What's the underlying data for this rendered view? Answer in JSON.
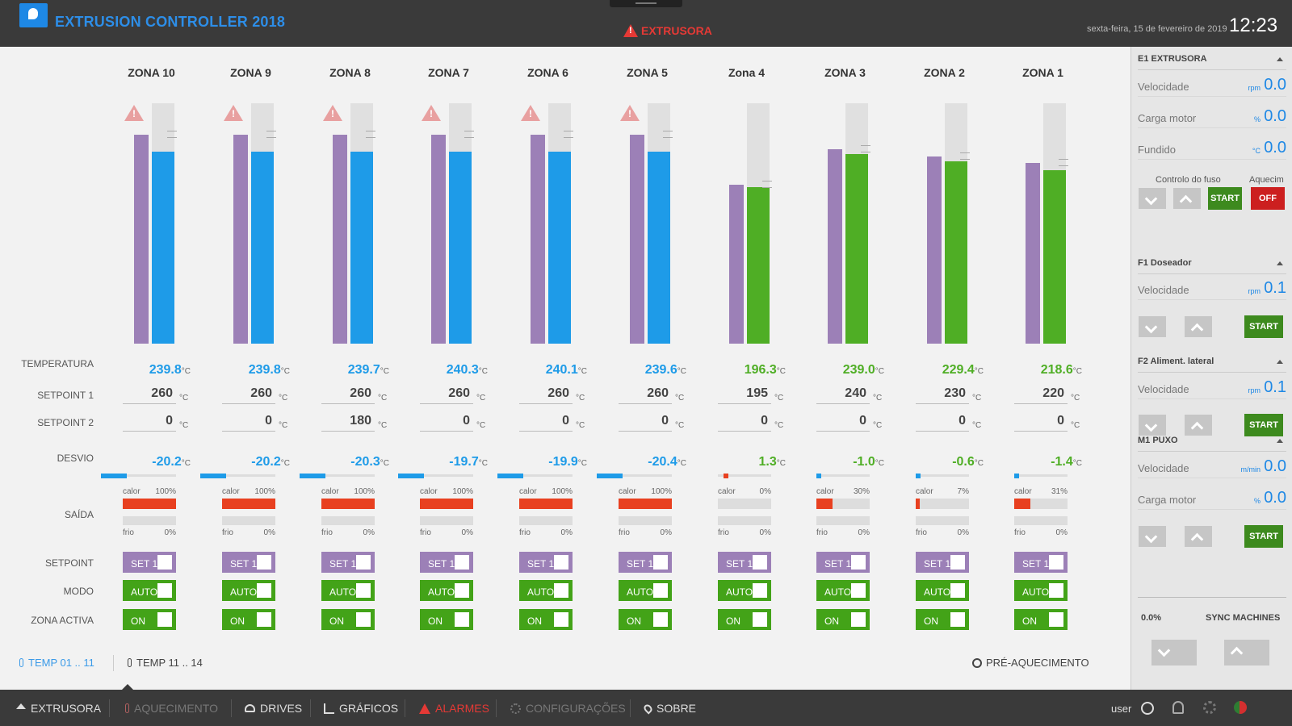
{
  "header": {
    "title": "EXTRUSION CONTROLLER 2018",
    "alarm": "EXTRUSORA",
    "date": "sexta-feira, 15 de fevereiro de 2019",
    "time": "12:23"
  },
  "labels": {
    "temperatura": "TEMPERATURA",
    "setpoint1": "SETPOINT 1",
    "setpoint2": "SETPOINT 2",
    "desvio": "DESVIO",
    "saida": "SAÍDA",
    "setpoint": "SETPOINT",
    "modo": "MODO",
    "zona_activa": "ZONA ACTIVA",
    "calor": "calor",
    "frio": "frio",
    "unit_c": "°C"
  },
  "colors": {
    "purple": "#9c80b7",
    "blue": "#1e9be8",
    "green": "#4fae25",
    "red": "#e84020"
  },
  "zones": [
    {
      "name": "ZONA 10",
      "temp": "239.8",
      "sp1": "260",
      "sp2": "0",
      "desvio": "-20.2",
      "calor": "100%",
      "frio": "0%",
      "set": "SET 1",
      "modo": "AUTO",
      "activa": "ON",
      "warn": true,
      "state": "blue",
      "pv": 0.8,
      "sp": 0.87,
      "heat": 1.0
    },
    {
      "name": "ZONA 9",
      "temp": "239.8",
      "sp1": "260",
      "sp2": "0",
      "desvio": "-20.2",
      "calor": "100%",
      "frio": "0%",
      "set": "SET 1",
      "modo": "AUTO",
      "activa": "ON",
      "warn": true,
      "state": "blue",
      "pv": 0.8,
      "sp": 0.87,
      "heat": 1.0
    },
    {
      "name": "ZONA 8",
      "temp": "239.7",
      "sp1": "260",
      "sp2": "180",
      "desvio": "-20.3",
      "calor": "100%",
      "frio": "0%",
      "set": "SET 1",
      "modo": "AUTO",
      "activa": "ON",
      "warn": true,
      "state": "blue",
      "pv": 0.8,
      "sp": 0.87,
      "heat": 1.0
    },
    {
      "name": "ZONA 7",
      "temp": "240.3",
      "sp1": "260",
      "sp2": "0",
      "desvio": "-19.7",
      "calor": "100%",
      "frio": "0%",
      "set": "SET 1",
      "modo": "AUTO",
      "activa": "ON",
      "warn": true,
      "state": "blue",
      "pv": 0.8,
      "sp": 0.87,
      "heat": 1.0
    },
    {
      "name": "ZONA 6",
      "temp": "240.1",
      "sp1": "260",
      "sp2": "0",
      "desvio": "-19.9",
      "calor": "100%",
      "frio": "0%",
      "set": "SET 1",
      "modo": "AUTO",
      "activa": "ON",
      "warn": true,
      "state": "blue",
      "pv": 0.8,
      "sp": 0.87,
      "heat": 1.0
    },
    {
      "name": "ZONA 5",
      "temp": "239.6",
      "sp1": "260",
      "sp2": "0",
      "desvio": "-20.4",
      "calor": "100%",
      "frio": "0%",
      "set": "SET 1",
      "modo": "AUTO",
      "activa": "ON",
      "warn": true,
      "state": "blue",
      "pv": 0.8,
      "sp": 0.87,
      "heat": 1.0
    },
    {
      "name": "Zona 4",
      "temp": "196.3",
      "sp1": "195",
      "sp2": "0",
      "desvio": "1.3",
      "calor": "0%",
      "frio": "0%",
      "set": "SET 1",
      "modo": "AUTO",
      "activa": "ON",
      "warn": false,
      "state": "green",
      "pv": 0.65,
      "sp": 0.66,
      "heat": 0.0
    },
    {
      "name": "ZONA 3",
      "temp": "239.0",
      "sp1": "240",
      "sp2": "0",
      "desvio": "-1.0",
      "calor": "30%",
      "frio": "0%",
      "set": "SET 1",
      "modo": "AUTO",
      "activa": "ON",
      "warn": false,
      "state": "green",
      "pv": 0.79,
      "sp": 0.81,
      "heat": 0.3
    },
    {
      "name": "ZONA 2",
      "temp": "229.4",
      "sp1": "230",
      "sp2": "0",
      "desvio": "-0.6",
      "calor": "7%",
      "frio": "0%",
      "set": "SET 1",
      "modo": "AUTO",
      "activa": "ON",
      "warn": false,
      "state": "green",
      "pv": 0.76,
      "sp": 0.78,
      "heat": 0.07
    },
    {
      "name": "ZONA 1",
      "temp": "218.6",
      "sp1": "220",
      "sp2": "0",
      "desvio": "-1.4",
      "calor": "31%",
      "frio": "0%",
      "set": "SET 1",
      "modo": "AUTO",
      "activa": "ON",
      "warn": false,
      "state": "green",
      "pv": 0.72,
      "sp": 0.75,
      "heat": 0.31
    }
  ],
  "footer": {
    "tab1": "TEMP 01 .. 11",
    "tab2": "TEMP 11 .. 14",
    "preheat": "PRÉ-AQUECIMENTO"
  },
  "side": {
    "e1": {
      "title": "E1 EXTRUSORA",
      "vel_label": "Velocidade",
      "vel_unit": "rpm",
      "vel": "0.0",
      "carga_label": "Carga motor",
      "carga_unit": "%",
      "carga": "0.0",
      "fund_label": "Fundido",
      "fund_unit": "°C",
      "fund": "0.0",
      "controlo": "Controlo do fuso",
      "aquec": "Aquecim",
      "start": "START",
      "off": "OFF"
    },
    "f1": {
      "title": "F1 Doseador",
      "vel_label": "Velocidade",
      "vel_unit": "rpm",
      "vel": "0.1",
      "start": "START"
    },
    "f2": {
      "title": "F2 Aliment. lateral",
      "vel_label": "Velocidade",
      "vel_unit": "rpm",
      "vel": "0.1",
      "start": "START"
    },
    "m1": {
      "title": "M1 PUXO",
      "vel_label": "Velocidade",
      "vel_unit": "m/min",
      "vel": "0.0",
      "carga_label": "Carga motor",
      "carga_unit": "%",
      "carga": "0.0",
      "start": "START"
    },
    "sync": {
      "pct": "0.0%",
      "label": "SYNC MACHINES"
    }
  },
  "nav": {
    "extrusora": "EXTRUSORA",
    "aquecimento": "AQUECIMENTO",
    "drives": "DRIVES",
    "graficos": "GRÁFICOS",
    "alarmes": "ALARMES",
    "configuracoes": "CONFIGURAÇÕES",
    "sobre": "SOBRE",
    "user": "user"
  }
}
